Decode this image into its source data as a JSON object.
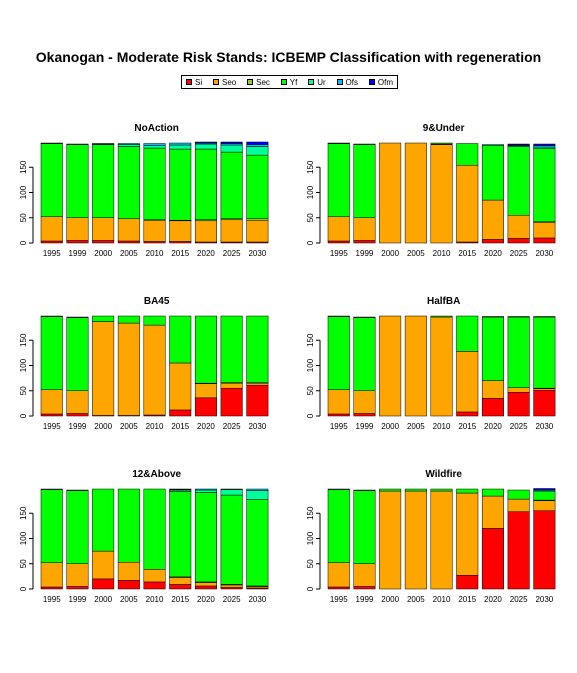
{
  "title": "Okanogan  - Moderate Risk Stands: ICBEMP Classification with regeneration",
  "legend": [
    {
      "label": "Si",
      "color": "#ff0000"
    },
    {
      "label": "Seo",
      "color": "#ffa500"
    },
    {
      "label": "Sec",
      "color": "#9acd32"
    },
    {
      "label": "Yf",
      "color": "#00ff00"
    },
    {
      "label": "Ur",
      "color": "#00ff99"
    },
    {
      "label": "Ofs",
      "color": "#00bfff"
    },
    {
      "label": "Ofm",
      "color": "#0000ff"
    }
  ],
  "chart_data": [
    {
      "type": "bar",
      "stacked": true,
      "title": "NoAction",
      "categories": [
        "1995",
        "1999",
        "2000",
        "2005",
        "2010",
        "2015",
        "2020",
        "2025",
        "2030"
      ],
      "ylim": [
        0,
        200
      ],
      "yticks": [
        0,
        50,
        100,
        150
      ],
      "series": [
        {
          "name": "Si",
          "values": [
            4,
            5,
            5,
            4,
            3,
            3,
            2,
            2,
            2
          ]
        },
        {
          "name": "Seo",
          "values": [
            48,
            45,
            45,
            44,
            42,
            41,
            42,
            44,
            43
          ]
        },
        {
          "name": "Sec",
          "values": [
            0,
            0,
            0,
            0,
            1,
            1,
            2,
            2,
            3
          ]
        },
        {
          "name": "Yf",
          "values": [
            145,
            145,
            145,
            143,
            142,
            141,
            140,
            132,
            126
          ]
        },
        {
          "name": "Ur",
          "values": [
            1,
            1,
            1,
            4,
            5,
            8,
            10,
            14,
            17
          ]
        },
        {
          "name": "Ofs",
          "values": [
            0,
            0,
            1,
            2,
            4,
            4,
            2,
            3,
            4
          ]
        },
        {
          "name": "Ofm",
          "values": [
            0,
            0,
            0,
            0,
            0,
            0,
            2,
            3,
            5
          ]
        }
      ]
    },
    {
      "type": "bar",
      "stacked": true,
      "title": "9&Under",
      "categories": [
        "1995",
        "1999",
        "2000",
        "2005",
        "2010",
        "2015",
        "2020",
        "2025",
        "2030"
      ],
      "ylim": [
        0,
        200
      ],
      "yticks": [
        0,
        50,
        100,
        150
      ],
      "series": [
        {
          "name": "Si",
          "values": [
            4,
            5,
            0,
            0,
            0,
            2,
            7,
            9,
            10
          ]
        },
        {
          "name": "Seo",
          "values": [
            48,
            45,
            198,
            198,
            195,
            152,
            78,
            46,
            31
          ]
        },
        {
          "name": "Sec",
          "values": [
            0,
            0,
            0,
            0,
            1,
            0,
            0,
            0,
            1
          ]
        },
        {
          "name": "Yf",
          "values": [
            145,
            145,
            0,
            0,
            2,
            43,
            108,
            136,
            145
          ]
        },
        {
          "name": "Ur",
          "values": [
            1,
            1,
            0,
            0,
            0,
            0,
            2,
            2,
            3
          ]
        },
        {
          "name": "Ofs",
          "values": [
            0,
            0,
            0,
            0,
            0,
            0,
            0,
            1,
            3
          ]
        },
        {
          "name": "Ofm",
          "values": [
            0,
            0,
            0,
            0,
            0,
            0,
            0,
            2,
            3
          ]
        }
      ]
    },
    {
      "type": "bar",
      "stacked": true,
      "title": "BA45",
      "categories": [
        "1995",
        "1999",
        "2000",
        "2005",
        "2010",
        "2015",
        "2020",
        "2025",
        "2030"
      ],
      "ylim": [
        0,
        200
      ],
      "yticks": [
        0,
        50,
        100,
        150
      ],
      "series": [
        {
          "name": "Si",
          "values": [
            4,
            5,
            1,
            1,
            2,
            12,
            36,
            55,
            61
          ]
        },
        {
          "name": "Seo",
          "values": [
            48,
            45,
            186,
            183,
            178,
            93,
            28,
            10,
            4
          ]
        },
        {
          "name": "Sec",
          "values": [
            0,
            0,
            0,
            0,
            0,
            0,
            1,
            1,
            1
          ]
        },
        {
          "name": "Yf",
          "values": [
            145,
            145,
            11,
            14,
            18,
            93,
            133,
            132,
            132
          ]
        },
        {
          "name": "Ur",
          "values": [
            1,
            1,
            0,
            0,
            0,
            0,
            0,
            0,
            0
          ]
        },
        {
          "name": "Ofs",
          "values": [
            0,
            0,
            0,
            0,
            0,
            0,
            0,
            0,
            0
          ]
        },
        {
          "name": "Ofm",
          "values": [
            0,
            0,
            0,
            0,
            0,
            0,
            0,
            0,
            0
          ]
        }
      ]
    },
    {
      "type": "bar",
      "stacked": true,
      "title": "HalfBA",
      "categories": [
        "1995",
        "1999",
        "2000",
        "2005",
        "2010",
        "2015",
        "2020",
        "2025",
        "2030"
      ],
      "ylim": [
        0,
        200
      ],
      "yticks": [
        0,
        50,
        100,
        150
      ],
      "series": [
        {
          "name": "Si",
          "values": [
            4,
            5,
            0,
            0,
            0,
            8,
            35,
            47,
            51
          ]
        },
        {
          "name": "Seo",
          "values": [
            48,
            45,
            198,
            198,
            196,
            120,
            35,
            9,
            3
          ]
        },
        {
          "name": "Sec",
          "values": [
            0,
            0,
            0,
            0,
            0,
            0,
            0,
            0,
            1
          ]
        },
        {
          "name": "Yf",
          "values": [
            145,
            145,
            0,
            0,
            2,
            70,
            126,
            140,
            141
          ]
        },
        {
          "name": "Ur",
          "values": [
            1,
            1,
            0,
            0,
            0,
            0,
            1,
            1,
            1
          ]
        },
        {
          "name": "Ofs",
          "values": [
            0,
            0,
            0,
            0,
            0,
            0,
            0,
            0,
            0
          ]
        },
        {
          "name": "Ofm",
          "values": [
            0,
            0,
            0,
            0,
            0,
            0,
            0,
            0,
            0
          ]
        }
      ]
    },
    {
      "type": "bar",
      "stacked": true,
      "title": "12&Above",
      "categories": [
        "1995",
        "1999",
        "2000",
        "2005",
        "2010",
        "2015",
        "2020",
        "2025",
        "2030"
      ],
      "ylim": [
        0,
        200
      ],
      "yticks": [
        0,
        50,
        100,
        150
      ],
      "series": [
        {
          "name": "Si",
          "values": [
            4,
            5,
            20,
            17,
            14,
            9,
            6,
            3,
            2
          ]
        },
        {
          "name": "Seo",
          "values": [
            48,
            45,
            55,
            36,
            25,
            14,
            7,
            5,
            3
          ]
        },
        {
          "name": "Sec",
          "values": [
            0,
            0,
            0,
            0,
            0,
            1,
            1,
            1,
            1
          ]
        },
        {
          "name": "Yf",
          "values": [
            145,
            145,
            123,
            145,
            159,
            169,
            177,
            177,
            171
          ]
        },
        {
          "name": "Ur",
          "values": [
            1,
            1,
            0,
            0,
            0,
            3,
            5,
            11,
            18
          ]
        },
        {
          "name": "Ofs",
          "values": [
            0,
            0,
            0,
            0,
            0,
            1,
            2,
            1,
            3
          ]
        },
        {
          "name": "Ofm",
          "values": [
            0,
            0,
            0,
            0,
            0,
            1,
            0,
            0,
            0
          ]
        }
      ]
    },
    {
      "type": "bar",
      "stacked": true,
      "title": "Wildfire",
      "categories": [
        "1995",
        "1999",
        "2000",
        "2005",
        "2010",
        "2015",
        "2020",
        "2025",
        "2030"
      ],
      "ylim": [
        0,
        200
      ],
      "yticks": [
        0,
        50,
        100,
        150
      ],
      "series": [
        {
          "name": "Si",
          "values": [
            4,
            5,
            0,
            0,
            0,
            27,
            120,
            153,
            155
          ]
        },
        {
          "name": "Seo",
          "values": [
            48,
            45,
            194,
            194,
            194,
            163,
            64,
            25,
            20
          ]
        },
        {
          "name": "Sec",
          "values": [
            0,
            0,
            0,
            0,
            0,
            0,
            0,
            0,
            1
          ]
        },
        {
          "name": "Yf",
          "values": [
            145,
            145,
            4,
            4,
            4,
            8,
            14,
            18,
            18
          ]
        },
        {
          "name": "Ur",
          "values": [
            1,
            1,
            0,
            0,
            0,
            0,
            0,
            0,
            0
          ]
        },
        {
          "name": "Ofs",
          "values": [
            0,
            0,
            0,
            0,
            0,
            0,
            0,
            0,
            2
          ]
        },
        {
          "name": "Ofm",
          "values": [
            0,
            0,
            0,
            0,
            0,
            0,
            0,
            0,
            3
          ]
        }
      ]
    }
  ]
}
